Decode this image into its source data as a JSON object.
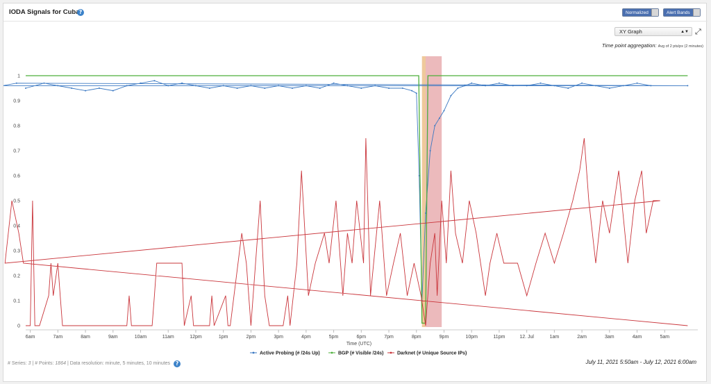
{
  "header": {
    "title": "IODA Signals for Cuba",
    "normalized_label": "Normalized",
    "alert_bands_label": "Alert Bands"
  },
  "controls": {
    "graph_type": "XY Graph",
    "aggregation_label": "Time point aggregation:",
    "aggregation_value": "Avg of 2 pts/px (2 minutes)"
  },
  "footer": {
    "series_label": "# Series:",
    "series_count": "3",
    "points_label": "# Points:",
    "points_count": "1864",
    "resolution_text": "| Data resolution: minute, 5 minutes, 10 minutes",
    "date_range": "July 11, 2021 5:50am - July 12, 2021 6:00am"
  },
  "colors": {
    "active_probing": "#3a78c2",
    "bgp": "#4caf3a",
    "darknet": "#c9343a",
    "band_orange": "#e9b77a",
    "band_red": "#e5a3a5"
  },
  "chart_data": {
    "type": "line",
    "xlabel": "Time (UTC)",
    "x_range": [
      "2021-07-11 05:50",
      "2021-07-12 06:00"
    ],
    "ylim": [
      0,
      1
    ],
    "yticks": [
      "0",
      "0.1",
      "0.2",
      "0.3",
      "0.4",
      "0.5",
      "0.6",
      "0.7",
      "0.8",
      "0.9",
      "1"
    ],
    "xticks": [
      "6am",
      "7am",
      "8am",
      "9am",
      "10am",
      "11am",
      "12pm",
      "1pm",
      "2pm",
      "3pm",
      "4pm",
      "5pm",
      "6pm",
      "7pm",
      "8pm",
      "9pm",
      "10pm",
      "11pm",
      "12. Jul",
      "1am",
      "2am",
      "3am",
      "4am",
      "5am"
    ],
    "alert_bands": [
      {
        "level": "warning",
        "start": "20:12",
        "end": "20:20"
      },
      {
        "level": "critical",
        "start": "20:20",
        "end": "20:55"
      }
    ],
    "series": [
      {
        "name": "Active Probing (# /24s Up)",
        "x": [
          "5:50",
          "6:30",
          "7:00",
          "7:30",
          "8:00",
          "8:30",
          "9:00",
          "9:30",
          "10:00",
          "10:30",
          "11:00",
          "11:30",
          "12:00",
          "12:30",
          "13:00",
          "13:30",
          "14:00",
          "14:30",
          "15:00",
          "15:30",
          "16:00",
          "16:30",
          "17:00",
          "17:30",
          "18:00",
          "18:30",
          "19:00",
          "19:30",
          "19:50",
          "20:00",
          "20:06",
          "20:12",
          "20:20",
          "20:30",
          "20:40",
          "20:50",
          "21:00",
          "21:15",
          "21:30",
          "21:45",
          "22:00",
          "22:30",
          "23:00",
          "23:30",
          "0:00",
          "0:30",
          "1:00",
          "1:30",
          "2:00",
          "2:30",
          "3:00",
          "3:30",
          "4:00",
          "4:30",
          "5:00",
          "5:30",
          "5:50"
        ],
        "values": [
          0.95,
          0.97,
          0.96,
          0.95,
          0.94,
          0.95,
          0.94,
          0.96,
          0.97,
          0.98,
          0.96,
          0.97,
          0.96,
          0.95,
          0.96,
          0.95,
          0.96,
          0.95,
          0.96,
          0.95,
          0.96,
          0.95,
          0.97,
          0.96,
          0.95,
          0.96,
          0.95,
          0.95,
          0.94,
          0.93,
          0.6,
          0.1,
          0.45,
          0.7,
          0.8,
          0.83,
          0.86,
          0.92,
          0.95,
          0.96,
          0.97,
          0.96,
          0.97,
          0.96,
          0.96,
          0.97,
          0.96,
          0.95,
          0.97,
          0.96,
          0.95,
          0.96,
          0.97,
          0.96,
          0.96,
          0.97,
          0.96
        ]
      },
      {
        "name": "BGP (# Visible /24s)",
        "x": [
          "5:50",
          "20:05",
          "20:12",
          "20:20",
          "20:25",
          "20:32",
          "5:50"
        ],
        "values": [
          1,
          1,
          0.01,
          0.01,
          1,
          1,
          1
        ]
      },
      {
        "name": "Darknet (# Unique Source IPs)",
        "x": [
          "5:50",
          "6:00",
          "6:05",
          "6:10",
          "6:15",
          "6:20",
          "6:40",
          "6:45",
          "6:50",
          "7:00",
          "7:05",
          "7:10",
          "7:20",
          "9:30",
          "9:35",
          "9:40",
          "10:25",
          "10:30",
          "10:35",
          "10:45",
          "11:30",
          "11:35",
          "11:50",
          "11:55",
          "12:00",
          "12:30",
          "12:35",
          "12:40",
          "13:05",
          "13:10",
          "13:15",
          "13:40",
          "13:50",
          "14:00",
          "14:20",
          "14:30",
          "14:40",
          "14:55",
          "15:10",
          "15:20",
          "15:25",
          "15:40",
          "15:50",
          "16:05",
          "16:20",
          "16:40",
          "16:50",
          "17:05",
          "17:20",
          "17:30",
          "17:40",
          "17:50",
          "18:05",
          "18:10",
          "18:20",
          "18:40",
          "18:55",
          "19:10",
          "19:25",
          "19:40",
          "19:55",
          "20:10",
          "20:20",
          "20:30",
          "20:40",
          "20:45",
          "20:55",
          "21:05",
          "21:15",
          "21:25",
          "21:40",
          "21:55",
          "22:10",
          "22:30",
          "22:40",
          "22:55",
          "23:10",
          "23:20",
          "23:40",
          "0:00",
          "0:20",
          "0:40",
          "1:00",
          "1:20",
          "1:40",
          "1:55",
          "2:05",
          "2:15",
          "2:30",
          "2:45",
          "3:00",
          "3:20",
          "3:40",
          "3:55",
          "4:10",
          "4:20",
          "4:35",
          "4:50",
          "5:05",
          "5:20",
          "5:35",
          "5:45",
          "5:50"
        ],
        "values": [
          0,
          0,
          0.5,
          0,
          0,
          0,
          0.12,
          0.25,
          0.12,
          0.25,
          0.12,
          0,
          0,
          0,
          0.12,
          0,
          0,
          0.12,
          0.25,
          0.25,
          0.25,
          0,
          0.12,
          0,
          0,
          0,
          0.12,
          0,
          0.12,
          0,
          0,
          0.37,
          0.25,
          0,
          0.5,
          0.12,
          0,
          0,
          0,
          0.12,
          0,
          0.25,
          0.62,
          0.12,
          0.25,
          0.37,
          0.25,
          0.5,
          0.12,
          0.37,
          0.25,
          0.5,
          0.25,
          0.75,
          0.12,
          0.5,
          0.12,
          0.25,
          0.37,
          0.12,
          0.25,
          0.12,
          0,
          0.25,
          0.37,
          0.12,
          0.5,
          0.25,
          0.62,
          0.37,
          0.25,
          0.5,
          0.37,
          0.12,
          0.25,
          0.37,
          0.25,
          0.25,
          0.25,
          0.12,
          0.25,
          0.37,
          0.25,
          0.37,
          0.5,
          0.62,
          0.75,
          0.5,
          0.25,
          0.5,
          0.37,
          0.62,
          0.25,
          0.5,
          0.62,
          0.37,
          0.5,
          0.5,
          0.25,
          0.5,
          0.37,
          0.25,
          0
        ]
      }
    ]
  }
}
